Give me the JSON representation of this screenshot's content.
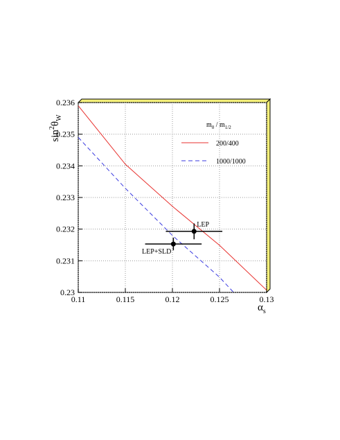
{
  "chart_data": {
    "type": "line",
    "y_label": [
      "sin",
      "2",
      "θ",
      "W"
    ],
    "x_label": [
      "α",
      "s"
    ],
    "legend_title": [
      "m",
      "0",
      " / m",
      "1/2"
    ],
    "xlim": [
      0.11,
      0.13
    ],
    "xticks": [
      0.11,
      0.115,
      0.12,
      0.125,
      0.13
    ],
    "ylim": [
      0.23,
      0.236
    ],
    "yticks": [
      0.23,
      0.231,
      0.232,
      0.233,
      0.234,
      0.235,
      0.236
    ],
    "grid": true,
    "series": [
      {
        "name": "200/400",
        "color": "#e8322f",
        "dash": "solid",
        "x": [
          0.11,
          0.115,
          0.12,
          0.125,
          0.13
        ],
        "values": [
          0.2359,
          0.23405,
          0.23272,
          0.23149,
          0.23007
        ]
      },
      {
        "name": "1000/1000",
        "color": "#3a3ae0",
        "dash": "dashed",
        "x": [
          0.11,
          0.115,
          0.12,
          0.125,
          0.1265
        ],
        "values": [
          0.2349,
          0.23329,
          0.2318,
          0.23048,
          0.23
        ]
      }
    ],
    "points": [
      {
        "name": "LEP",
        "x": 0.1223,
        "y": 0.23193,
        "xerr": 0.003,
        "yerr": 0.00025
      },
      {
        "name": "LEP+SLD",
        "x": 0.1201,
        "y": 0.23153,
        "xerr": 0.003,
        "yerr": 0.0002
      }
    ]
  }
}
